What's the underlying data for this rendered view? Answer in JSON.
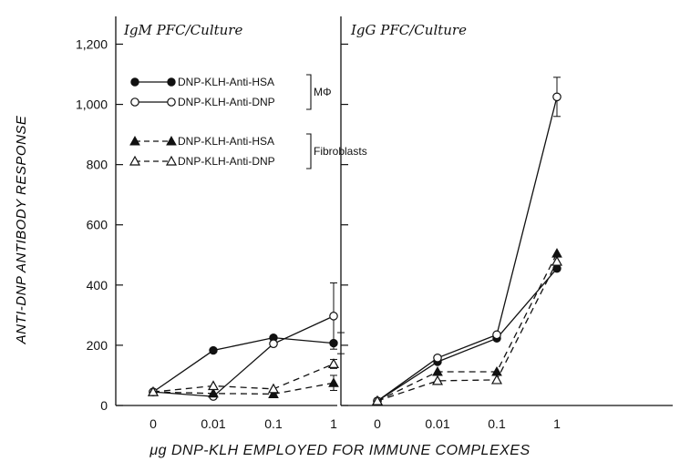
{
  "chart_data": {
    "type": "line",
    "ylabel": "ANTI-DNP ANTIBODY RESPONSE",
    "xlabel": "μg DNP-KLH EMPLOYED FOR IMMUNE COMPLEXES",
    "ylim": [
      0,
      1300
    ],
    "yticks": [
      0,
      200,
      400,
      600,
      800,
      1000,
      1200
    ],
    "ytick_labels": [
      "0",
      "200",
      "400",
      "600",
      "800",
      "1,000",
      "1,200"
    ],
    "categories": [
      "0",
      "0.01",
      "0.1",
      "1"
    ],
    "legend": {
      "groups": [
        {
          "label": "MΦ",
          "entries": [
            0,
            1
          ]
        },
        {
          "label": "Fibroblasts",
          "entries": [
            2,
            3
          ]
        }
      ]
    },
    "panels": [
      {
        "title": "IgM PFC/Culture",
        "series": [
          {
            "name": "DNP-KLH-Anti-HSA",
            "marker": "filled-circle",
            "dash": "solid",
            "x_index": [
              0,
              1,
              2,
              3
            ],
            "values": [
              45,
              183,
              225,
              207
            ],
            "errors": [
              0,
              0,
              0,
              35
            ]
          },
          {
            "name": "DNP-KLH-Anti-DNP",
            "marker": "open-circle",
            "dash": "solid",
            "x_index": [
              0,
              1,
              2,
              3
            ],
            "values": [
              45,
              30,
              205,
              297
            ],
            "errors": [
              0,
              0,
              0,
              110
            ]
          },
          {
            "name": "DNP-KLH-Anti-HSA",
            "marker": "filled-triangle",
            "dash": "dashed",
            "x_index": [
              0,
              1,
              2,
              3
            ],
            "values": [
              45,
              40,
              38,
              75
            ],
            "errors": [
              0,
              0,
              0,
              25
            ]
          },
          {
            "name": "DNP-KLH-Anti-DNP",
            "marker": "open-triangle",
            "dash": "dashed",
            "x_index": [
              0,
              1,
              2,
              3
            ],
            "values": [
              45,
              65,
              55,
              138
            ],
            "errors": [
              0,
              0,
              0,
              15
            ]
          }
        ]
      },
      {
        "title": "IgG PFC/Culture",
        "series": [
          {
            "name": "DNP-KLH-Anti-HSA",
            "marker": "filled-circle",
            "dash": "solid",
            "x_index": [
              0,
              1,
              2,
              3
            ],
            "values": [
              15,
              145,
              223,
              455
            ],
            "errors": [
              0,
              0,
              0,
              0
            ]
          },
          {
            "name": "DNP-KLH-Anti-DNP",
            "marker": "open-circle",
            "dash": "solid",
            "x_index": [
              0,
              1,
              2,
              3
            ],
            "values": [
              15,
              158,
              235,
              1025
            ],
            "errors": [
              0,
              0,
              0,
              65
            ]
          },
          {
            "name": "DNP-KLH-Anti-HSA",
            "marker": "filled-triangle",
            "dash": "dashed",
            "x_index": [
              0,
              1,
              2,
              3
            ],
            "values": [
              15,
              112,
              112,
              505
            ],
            "errors": [
              0,
              0,
              0,
              0
            ]
          },
          {
            "name": "DNP-KLH-Anti-DNP",
            "marker": "open-triangle",
            "dash": "dashed",
            "x_index": [
              0,
              1,
              2,
              3
            ],
            "values": [
              15,
              82,
              85,
              478
            ],
            "errors": [
              0,
              0,
              0,
              0
            ]
          }
        ]
      }
    ]
  }
}
